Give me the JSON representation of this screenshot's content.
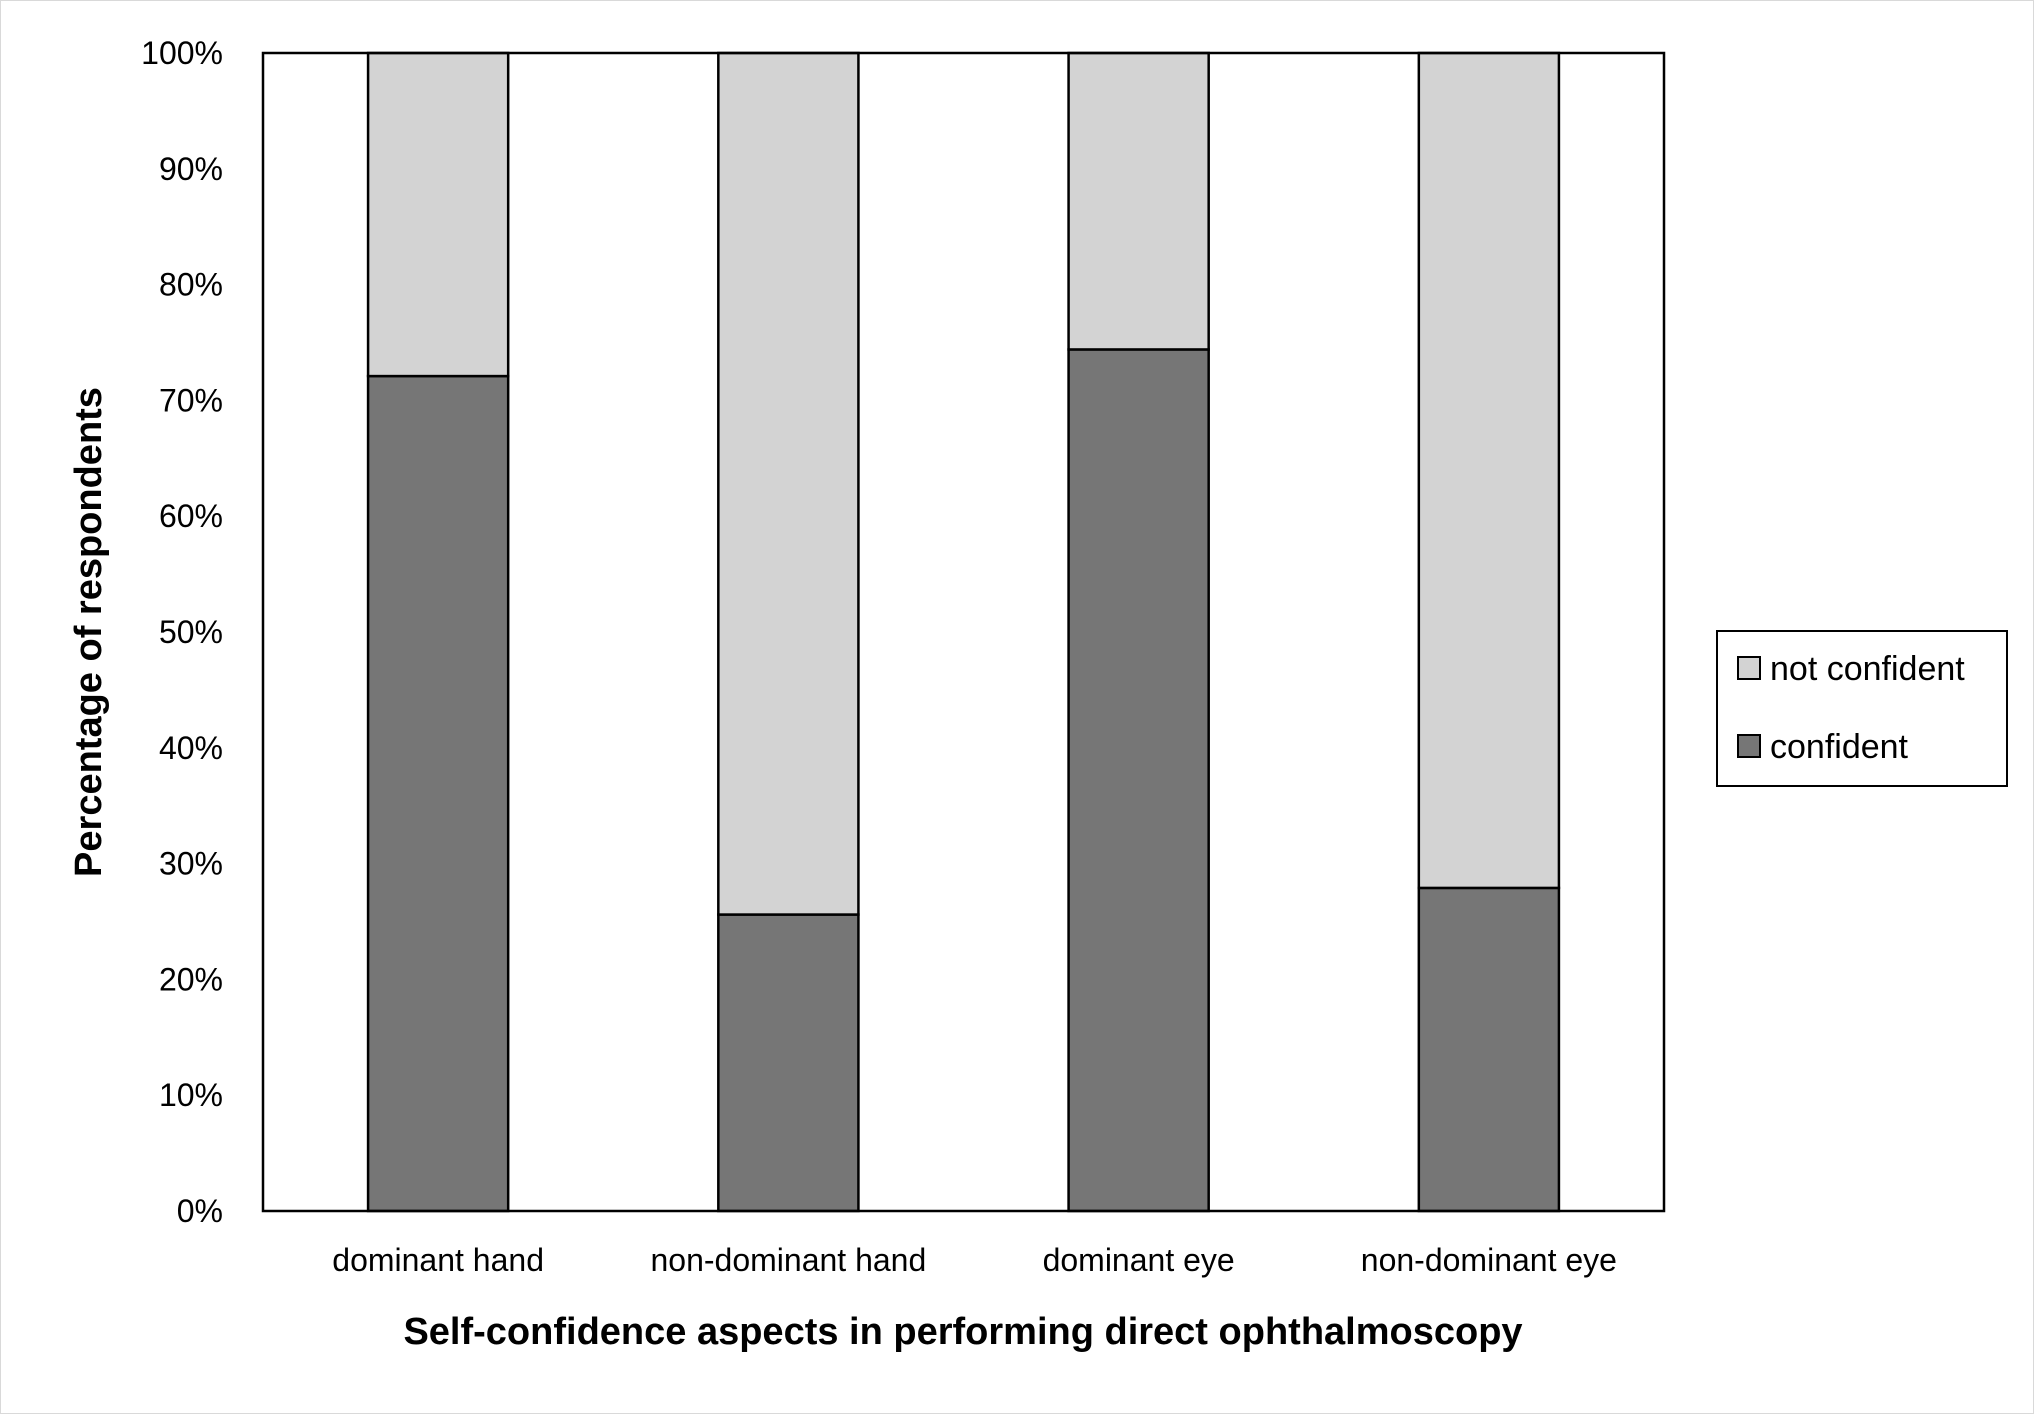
{
  "chart_data": {
    "type": "bar",
    "stacked": true,
    "percent": true,
    "categories": [
      "dominant hand",
      "non-dominant hand",
      "dominant eye",
      "non-dominant eye"
    ],
    "series": [
      {
        "name": "confident",
        "values": [
          72.1,
          25.6,
          74.4,
          27.9
        ],
        "color": "#767676"
      },
      {
        "name": "not confident",
        "values": [
          27.9,
          74.4,
          25.6,
          72.1
        ],
        "color": "#d3d3d3"
      }
    ],
    "title": "",
    "xlabel": "Self-confidence aspects in performing direct ophthalmoscopy",
    "ylabel": "Percentage of respondents",
    "ylim": [
      0,
      100
    ],
    "yticks": [
      0,
      10,
      20,
      30,
      40,
      50,
      60,
      70,
      80,
      90,
      100
    ],
    "ytick_labels": [
      "0%",
      "10%",
      "20%",
      "30%",
      "40%",
      "50%",
      "60%",
      "70%",
      "80%",
      "90%",
      "100%"
    ],
    "grid": false,
    "legend": {
      "position": "right",
      "entries": [
        "not confident",
        "confident"
      ]
    }
  }
}
